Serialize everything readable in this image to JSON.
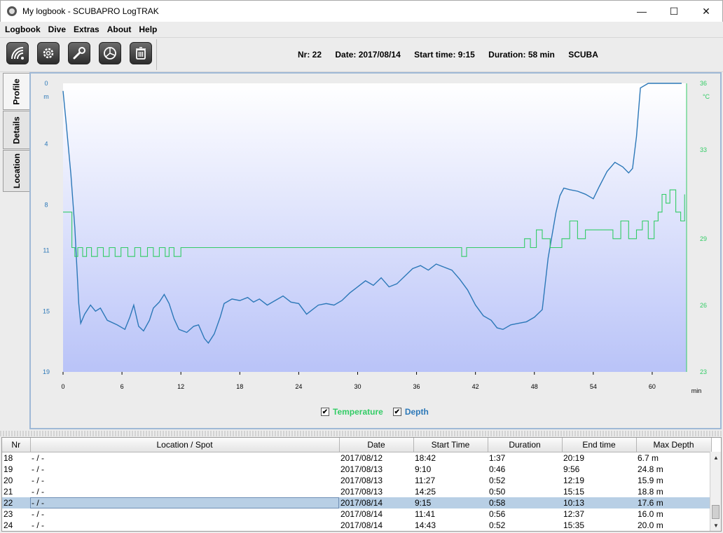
{
  "window": {
    "title": "My logbook - SCUBAPRO LogTRAK",
    "minimize": "—",
    "maximize": "☐",
    "close": "✕"
  },
  "menu": [
    "Logbook",
    "Dive",
    "Extras",
    "About",
    "Help"
  ],
  "toolbar": {
    "buttons": [
      "wireless-download-icon",
      "gear-icon",
      "wrench-icon",
      "pie-chart-icon",
      "trash-icon"
    ],
    "dive_info": {
      "nr": "Nr: 22",
      "date": "Date: 2017/08/14",
      "start": "Start time: 9:15",
      "duration": "Duration: 58 min",
      "type": "SCUBA"
    }
  },
  "side_tabs": [
    "Profile",
    "Details",
    "Location"
  ],
  "chart_data": {
    "type": "line",
    "x_unit": "min",
    "xlim": [
      0,
      63.5
    ],
    "x_ticks": [
      0,
      6,
      12,
      18,
      24,
      30,
      36,
      42,
      48,
      54,
      60
    ],
    "left_axis": {
      "unit": "m",
      "ylim": [
        0,
        19
      ],
      "ticks": [
        "0",
        "4",
        "8",
        "11",
        "15",
        "19"
      ]
    },
    "right_axis": {
      "unit": "°C",
      "ylim": [
        23,
        36
      ],
      "ticks": [
        "36",
        "33",
        "29",
        "26",
        "23"
      ]
    },
    "legend": [
      "Temperature",
      "Depth"
    ],
    "series": [
      {
        "name": "Depth",
        "color": "#2c78b8",
        "x": [
          0,
          0.3,
          0.8,
          1.2,
          1.6,
          1.8,
          2.2,
          2.8,
          3.3,
          3.8,
          4.5,
          5.5,
          6.3,
          6.8,
          7.2,
          7.7,
          8.2,
          8.8,
          9.2,
          9.8,
          10.3,
          10.8,
          11.3,
          11.8,
          12.6,
          13.3,
          13.8,
          14.4,
          14.8,
          15.4,
          16.0,
          16.4,
          17.2,
          18.0,
          18.8,
          19.4,
          20.0,
          20.8,
          21.6,
          22.4,
          23.2,
          24.0,
          24.8,
          25.4,
          26.0,
          26.8,
          27.6,
          28.4,
          29.2,
          30.0,
          30.8,
          31.6,
          32.4,
          33.2,
          34.0,
          34.8,
          35.6,
          36.4,
          37.2,
          38.0,
          38.8,
          39.6,
          40.4,
          41.2,
          42.0,
          42.8,
          43.6,
          44.2,
          44.8,
          45.6,
          46.4,
          47.2,
          48.0,
          48.8,
          49.4,
          49.8,
          50.2,
          50.6,
          51.0,
          51.6,
          52.4,
          53.2,
          54.0,
          54.6,
          55.4,
          56.2,
          57.0,
          57.6,
          58.0,
          58.4,
          58.8,
          59.6,
          60.4,
          61.2,
          62.0,
          62.6,
          63.0
        ],
        "y": [
          0.5,
          2.5,
          6.0,
          9.5,
          14.5,
          15.8,
          15.2,
          14.6,
          15.0,
          14.8,
          15.6,
          15.9,
          16.2,
          15.4,
          14.6,
          16.0,
          16.3,
          15.6,
          14.8,
          14.4,
          13.9,
          14.5,
          15.5,
          16.2,
          16.4,
          16.0,
          15.9,
          16.8,
          17.1,
          16.5,
          15.4,
          14.5,
          14.2,
          14.3,
          14.1,
          14.4,
          14.2,
          14.6,
          14.3,
          14.0,
          14.4,
          14.5,
          15.2,
          14.9,
          14.6,
          14.5,
          14.6,
          14.3,
          13.8,
          13.4,
          13.0,
          13.3,
          12.8,
          13.4,
          13.2,
          12.7,
          12.2,
          12.0,
          12.3,
          11.9,
          12.1,
          12.3,
          12.9,
          13.6,
          14.6,
          15.3,
          15.6,
          16.1,
          16.2,
          15.9,
          15.8,
          15.7,
          15.4,
          14.9,
          11.5,
          10.0,
          8.5,
          7.4,
          6.9,
          7.0,
          7.1,
          7.3,
          7.6,
          6.8,
          5.8,
          5.2,
          5.5,
          5.9,
          5.6,
          3.5,
          0.3,
          0.0,
          0.0,
          0.0,
          0.0,
          0.0,
          0.0
        ]
      },
      {
        "name": "Temperature",
        "color": "#33cc66",
        "x": [
          0,
          0.3,
          0.9,
          1.2,
          1.5,
          2.0,
          2.4,
          2.9,
          3.5,
          4.1,
          4.7,
          5.3,
          5.9,
          6.6,
          7.3,
          7.9,
          8.6,
          9.2,
          9.8,
          10.4,
          10.8,
          11.3,
          12.0,
          20.0,
          30.0,
          40.0,
          40.6,
          41.1,
          41.6,
          46.0,
          47.0,
          47.6,
          48.2,
          48.8,
          49.6,
          50.8,
          51.6,
          52.4,
          53.2,
          56.0,
          56.8,
          57.6,
          58.4,
          59.0,
          59.6,
          60.2,
          60.6,
          61.0,
          61.4,
          61.8,
          62.4,
          62.9,
          63.3
        ],
        "y": [
          30.2,
          30.2,
          28.6,
          28.2,
          28.6,
          28.2,
          28.6,
          28.2,
          28.6,
          28.2,
          28.6,
          28.2,
          28.6,
          28.2,
          28.6,
          28.2,
          28.6,
          28.2,
          28.6,
          28.2,
          28.6,
          28.2,
          28.6,
          28.6,
          28.6,
          28.6,
          28.2,
          28.6,
          28.6,
          28.6,
          29.0,
          28.6,
          29.4,
          29.0,
          28.6,
          29.0,
          29.8,
          29.0,
          29.4,
          29.0,
          29.8,
          29.0,
          29.4,
          29.8,
          29.0,
          29.8,
          30.2,
          31.0,
          30.6,
          31.2,
          30.2,
          29.8,
          31.0
        ]
      }
    ]
  },
  "table": {
    "columns": [
      "Nr",
      "Location / Spot",
      "Date",
      "Start Time",
      "Duration",
      "End time",
      "Max Depth"
    ],
    "rows": [
      [
        "18",
        "- / -",
        "2017/08/12",
        "18:42",
        "1:37",
        "20:19",
        "6.7 m"
      ],
      [
        "19",
        "- / -",
        "2017/08/13",
        "9:10",
        "0:46",
        "9:56",
        "24.8 m"
      ],
      [
        "20",
        "- / -",
        "2017/08/13",
        "11:27",
        "0:52",
        "12:19",
        "15.9 m"
      ],
      [
        "21",
        "- / -",
        "2017/08/13",
        "14:25",
        "0:50",
        "15:15",
        "18.8 m"
      ],
      [
        "22",
        "- / -",
        "2017/08/14",
        "9:15",
        "0:58",
        "10:13",
        "17.6 m"
      ],
      [
        "23",
        "- / -",
        "2017/08/14",
        "11:41",
        "0:56",
        "12:37",
        "16.0 m"
      ],
      [
        "24",
        "- / -",
        "2017/08/14",
        "14:43",
        "0:52",
        "15:35",
        "20.0 m"
      ]
    ],
    "selected_row": 4
  }
}
